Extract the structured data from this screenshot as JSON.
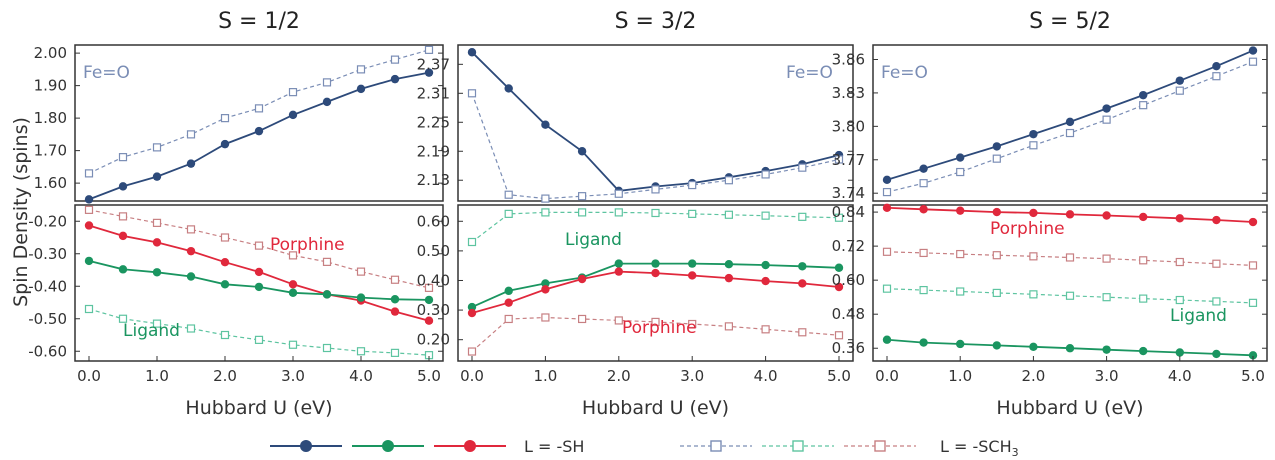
{
  "figure": {
    "ylabel": "Spin Density (spins)",
    "legend": {
      "sh_label": "L = -SH",
      "sch3_label_main": "L = -SCH",
      "sch3_label_sub": "3"
    }
  },
  "colors": {
    "FeO": "#2d4a7a",
    "Ligand": "#1a9560",
    "Porphine": "#e0283c",
    "FeO_light": "#7a8db5",
    "Ligand_light": "#5dc4a0",
    "Porphine_light": "#c77f82",
    "axis": "#333333"
  },
  "chart_data": [
    {
      "type": "line",
      "title": "S = 1/2",
      "xlabel": "Hubbard U (eV)",
      "x": [
        0.0,
        0.5,
        1.0,
        1.5,
        2.0,
        2.5,
        3.0,
        3.5,
        4.0,
        4.5,
        5.0
      ],
      "xticks": [
        "0.0",
        "1.0",
        "2.0",
        "3.0",
        "4.0",
        "5.0"
      ],
      "top": {
        "ylim": [
          1.545,
          2.025
        ],
        "yticks": [
          "2.00",
          "1.90",
          "1.80",
          "1.70",
          "1.60"
        ],
        "annotation": "Fe=O",
        "series": [
          {
            "group": "FeO",
            "ligand": "SH",
            "values": [
              1.55,
              1.59,
              1.62,
              1.66,
              1.72,
              1.76,
              1.81,
              1.85,
              1.89,
              1.92,
              1.94
            ]
          },
          {
            "group": "FeO",
            "ligand": "SCH3",
            "values": [
              1.63,
              1.68,
              1.71,
              1.75,
              1.8,
              1.83,
              1.88,
              1.91,
              1.95,
              1.98,
              2.01
            ]
          }
        ]
      },
      "bottom": {
        "ylim": [
          -0.63,
          -0.15
        ],
        "yticks": [
          "-0.20",
          "-0.30",
          "-0.40",
          "-0.50",
          "-0.60"
        ],
        "annotations": [
          {
            "group": "Porphine",
            "text": "Porphine"
          },
          {
            "group": "Ligand",
            "text": "Ligand"
          }
        ],
        "series": [
          {
            "group": "Porphine",
            "ligand": "SH",
            "values": [
              -0.213,
              -0.245,
              -0.265,
              -0.292,
              -0.326,
              -0.356,
              -0.394,
              -0.425,
              -0.444,
              -0.478,
              -0.506
            ]
          },
          {
            "group": "Ligand",
            "ligand": "SH",
            "values": [
              -0.322,
              -0.348,
              -0.357,
              -0.37,
              -0.394,
              -0.402,
              -0.42,
              -0.425,
              -0.435,
              -0.44,
              -0.442
            ]
          },
          {
            "group": "Porphine",
            "ligand": "SCH3",
            "values": [
              -0.165,
              -0.185,
              -0.205,
              -0.225,
              -0.25,
              -0.275,
              -0.305,
              -0.325,
              -0.355,
              -0.38,
              -0.405
            ]
          },
          {
            "group": "Ligand",
            "ligand": "SCH3",
            "values": [
              -0.47,
              -0.5,
              -0.515,
              -0.53,
              -0.55,
              -0.565,
              -0.58,
              -0.59,
              -0.6,
              -0.605,
              -0.612
            ]
          }
        ]
      }
    },
    {
      "type": "line",
      "title": "S = 3/2",
      "xlabel": "Hubbard U (eV)",
      "x": [
        0.0,
        0.5,
        1.0,
        1.5,
        2.0,
        2.5,
        3.0,
        3.5,
        4.0,
        4.5,
        5.0
      ],
      "xticks": [
        "0.0",
        "1.0",
        "2.0",
        "3.0",
        "4.0",
        "5.0"
      ],
      "top": {
        "ylim": [
          2.087,
          2.41
        ],
        "yticks": [
          "2.37",
          "2.31",
          "2.25",
          "2.19",
          "2.13"
        ],
        "annotation": "Fe=O",
        "series": [
          {
            "group": "FeO",
            "ligand": "SH",
            "values": [
              2.395,
              2.32,
              2.245,
              2.19,
              2.108,
              2.117,
              2.124,
              2.136,
              2.149,
              2.163,
              2.182
            ]
          },
          {
            "group": "FeO",
            "ligand": "SCH3",
            "values": [
              2.31,
              2.1,
              2.092,
              2.097,
              2.102,
              2.111,
              2.12,
              2.13,
              2.142,
              2.156,
              2.173
            ]
          }
        ]
      },
      "bottom": {
        "ylim": [
          0.128,
          0.655
        ],
        "yticks": [
          "0.60",
          "0.50",
          "0.40",
          "0.30",
          "0.20"
        ],
        "annotations": [
          {
            "group": "Ligand",
            "text": "Ligand"
          },
          {
            "group": "Porphine",
            "text": "Porphine"
          }
        ],
        "series": [
          {
            "group": "Ligand",
            "ligand": "SCH3",
            "values": [
              0.53,
              0.625,
              0.63,
              0.63,
              0.63,
              0.628,
              0.625,
              0.622,
              0.619,
              0.615,
              0.612
            ]
          },
          {
            "group": "Ligand",
            "ligand": "SH",
            "values": [
              0.31,
              0.365,
              0.39,
              0.41,
              0.457,
              0.457,
              0.457,
              0.455,
              0.452,
              0.448,
              0.443
            ]
          },
          {
            "group": "Porphine",
            "ligand": "SH",
            "values": [
              0.29,
              0.325,
              0.37,
              0.405,
              0.43,
              0.425,
              0.417,
              0.408,
              0.398,
              0.39,
              0.378
            ]
          },
          {
            "group": "Porphine",
            "ligand": "SCH3",
            "values": [
              0.16,
              0.27,
              0.275,
              0.27,
              0.265,
              0.26,
              0.253,
              0.245,
              0.235,
              0.225,
              0.215
            ]
          }
        ]
      }
    },
    {
      "type": "line",
      "title": "S = 5/2",
      "xlabel": "Hubbard U (eV)",
      "x": [
        0.0,
        0.5,
        1.0,
        1.5,
        2.0,
        2.5,
        3.0,
        3.5,
        4.0,
        4.5,
        5.0
      ],
      "xticks": [
        "0.0",
        "1.0",
        "2.0",
        "3.0",
        "4.0",
        "5.0"
      ],
      "top": {
        "ylim": [
          3.733,
          3.873
        ],
        "yticks": [
          "3.86",
          "3.83",
          "3.80",
          "3.77",
          "3.74"
        ],
        "annotation": "Fe=O",
        "series": [
          {
            "group": "FeO",
            "ligand": "SH",
            "values": [
              3.752,
              3.762,
              3.772,
              3.782,
              3.793,
              3.804,
              3.816,
              3.828,
              3.841,
              3.854,
              3.868
            ]
          },
          {
            "group": "FeO",
            "ligand": "SCH3",
            "values": [
              3.741,
              3.749,
              3.759,
              3.771,
              3.783,
              3.794,
              3.806,
              3.819,
              3.832,
              3.845,
              3.858
            ]
          }
        ]
      },
      "bottom": {
        "ylim": [
          0.315,
          0.865
        ],
        "yticks": [
          "0.84",
          "0.72",
          "0.60",
          "0.48",
          "0.36"
        ],
        "annotations": [
          {
            "group": "Porphine",
            "text": "Porphine"
          },
          {
            "group": "Ligand",
            "text": "Ligand"
          }
        ],
        "series": [
          {
            "group": "Porphine",
            "ligand": "SH",
            "values": [
              0.855,
              0.85,
              0.845,
              0.84,
              0.837,
              0.832,
              0.828,
              0.823,
              0.818,
              0.812,
              0.805
            ]
          },
          {
            "group": "Porphine",
            "ligand": "SCH3",
            "values": [
              0.7,
              0.696,
              0.692,
              0.688,
              0.684,
              0.68,
              0.676,
              0.67,
              0.664,
              0.658,
              0.652
            ]
          },
          {
            "group": "Ligand",
            "ligand": "SCH3",
            "values": [
              0.57,
              0.565,
              0.56,
              0.555,
              0.55,
              0.545,
              0.54,
              0.535,
              0.53,
              0.525,
              0.52
            ]
          },
          {
            "group": "Ligand",
            "ligand": "SH",
            "values": [
              0.39,
              0.38,
              0.375,
              0.37,
              0.365,
              0.36,
              0.355,
              0.35,
              0.345,
              0.34,
              0.335
            ]
          }
        ]
      }
    }
  ]
}
